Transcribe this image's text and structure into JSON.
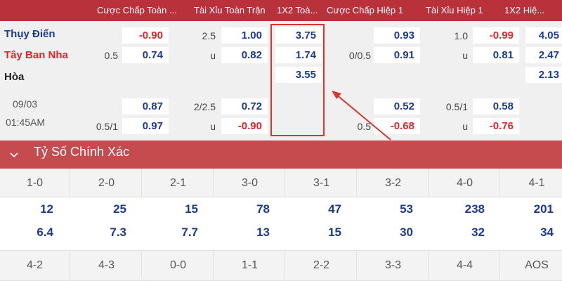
{
  "header": {
    "cols": [
      "Cược Chấp Toàn ...",
      "Tài Xỉu Toàn Trận",
      "1X2 Toà...",
      "Cược Chấp Hiệp 1",
      "Tài Xỉu Hiệp 1",
      "1X2 Hiệ..."
    ]
  },
  "match": {
    "home": "Thụy Điển",
    "away": "Tây Ban Nha",
    "draw": "Hòa",
    "date": "09/03",
    "time": "01:45AM",
    "rows": {
      "r1": {
        "ah_line": "",
        "ah": "-0.90",
        "ou_line": "2.5",
        "ou": "1.00",
        "x12": "3.75",
        "h1ah_line": "",
        "h1ah": "0.93",
        "h1ou_line": "1.0",
        "h1ou": "-0.99",
        "h1x12": "4.05"
      },
      "r2": {
        "ah_line": "0.5",
        "ah": "0.74",
        "ou_line": "u",
        "ou": "0.82",
        "x12": "1.74",
        "h1ah_line": "0/0.5",
        "h1ah": "0.91",
        "h1ou_line": "u",
        "h1ou": "0.81",
        "h1x12": "2.47"
      },
      "r3": {
        "x12": "3.55",
        "h1x12": "2.13"
      },
      "r4": {
        "ah": "0.87",
        "ou_line": "2/2.5",
        "ou": "0.72",
        "h1ah": "0.52",
        "h1ou_line": "0.5/1",
        "h1ou": "0.58"
      },
      "r5": {
        "ah_line": "0.5/1",
        "ah": "0.97",
        "ou_line": "u",
        "ou": "-0.90",
        "h1ah_line": "0.5",
        "h1ah": "-0.68",
        "h1ou_line": "u",
        "h1ou": "-0.76"
      }
    }
  },
  "section": {
    "title": "Tỷ Số Chính Xác"
  },
  "scores": {
    "row1": {
      "labels": [
        "1-0",
        "2-0",
        "2-1",
        "3-0",
        "3-1",
        "3-2",
        "4-0",
        "4-1"
      ],
      "home": [
        "12",
        "25",
        "15",
        "78",
        "47",
        "53",
        "238",
        "201"
      ],
      "away": [
        "6.4",
        "7.3",
        "7.7",
        "13",
        "15",
        "30",
        "32",
        "34"
      ]
    },
    "row2": {
      "labels": [
        "4-2",
        "4-3",
        "0-0",
        "1-1",
        "2-2",
        "3-3",
        "4-4",
        "AOS"
      ]
    }
  },
  "colors": {
    "header": "#b9313b",
    "section": "#c64b4f",
    "blue": "#1c3b8f",
    "red": "#e2242b",
    "annotation": "#d9352d"
  },
  "icons": {
    "collapse": "chevron-down-icon",
    "annotation": "arrow-annotation"
  }
}
